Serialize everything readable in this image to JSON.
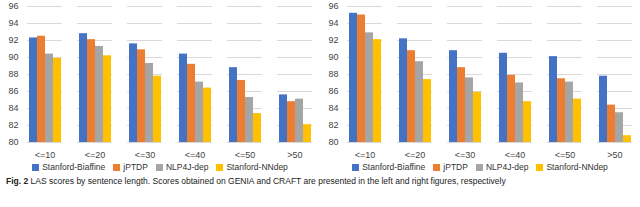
{
  "chart_data": [
    {
      "type": "bar",
      "title": "GENIA",
      "categories": [
        "<=10",
        "<=20",
        "<=30",
        "<=40",
        "<=50",
        ">50"
      ],
      "series": [
        {
          "name": "Stanford-Biaffine",
          "color": "#4472c4",
          "values": [
            92.3,
            92.8,
            91.6,
            90.4,
            88.8,
            85.6
          ]
        },
        {
          "name": "jPTDP",
          "color": "#ed7d31",
          "values": [
            92.5,
            92.1,
            90.9,
            89.2,
            87.3,
            84.8
          ]
        },
        {
          "name": "NLP4J-dep",
          "color": "#a5a5a5",
          "values": [
            90.4,
            91.3,
            89.3,
            87.1,
            85.3,
            85.1
          ]
        },
        {
          "name": "Stanford-NNdep",
          "color": "#ffc000",
          "values": [
            89.9,
            90.2,
            87.8,
            86.4,
            83.4,
            82.1
          ]
        }
      ],
      "ylim": [
        80,
        96
      ],
      "yticks": [
        80,
        82,
        84,
        86,
        88,
        90,
        92,
        94,
        96
      ],
      "grid": true,
      "legend": "bottom"
    },
    {
      "type": "bar",
      "title": "CRAFT",
      "categories": [
        "<=10",
        "<=20",
        "<=30",
        "<=40",
        "<=50",
        ">50"
      ],
      "series": [
        {
          "name": "Stanford-Biaffine",
          "color": "#4472c4",
          "values": [
            95.2,
            92.2,
            90.8,
            90.5,
            90.1,
            87.8
          ]
        },
        {
          "name": "jPTDP",
          "color": "#ed7d31",
          "values": [
            95.0,
            90.8,
            88.8,
            87.9,
            87.5,
            84.4
          ]
        },
        {
          "name": "NLP4J-dep",
          "color": "#a5a5a5",
          "values": [
            92.9,
            89.5,
            87.6,
            87.0,
            87.1,
            83.5
          ]
        },
        {
          "name": "Stanford-NNdep",
          "color": "#ffc000",
          "values": [
            92.1,
            87.4,
            85.9,
            84.8,
            85.1,
            80.8
          ]
        }
      ],
      "ylim": [
        80,
        96
      ],
      "yticks": [
        80,
        82,
        84,
        86,
        88,
        90,
        92,
        94,
        96
      ],
      "grid": true,
      "legend": "bottom"
    }
  ],
  "caption": "Fig. 2 LAS scores by sentence length. Scores obtained on GENIA and CRAFT are presented in the left and right figures, respectively"
}
